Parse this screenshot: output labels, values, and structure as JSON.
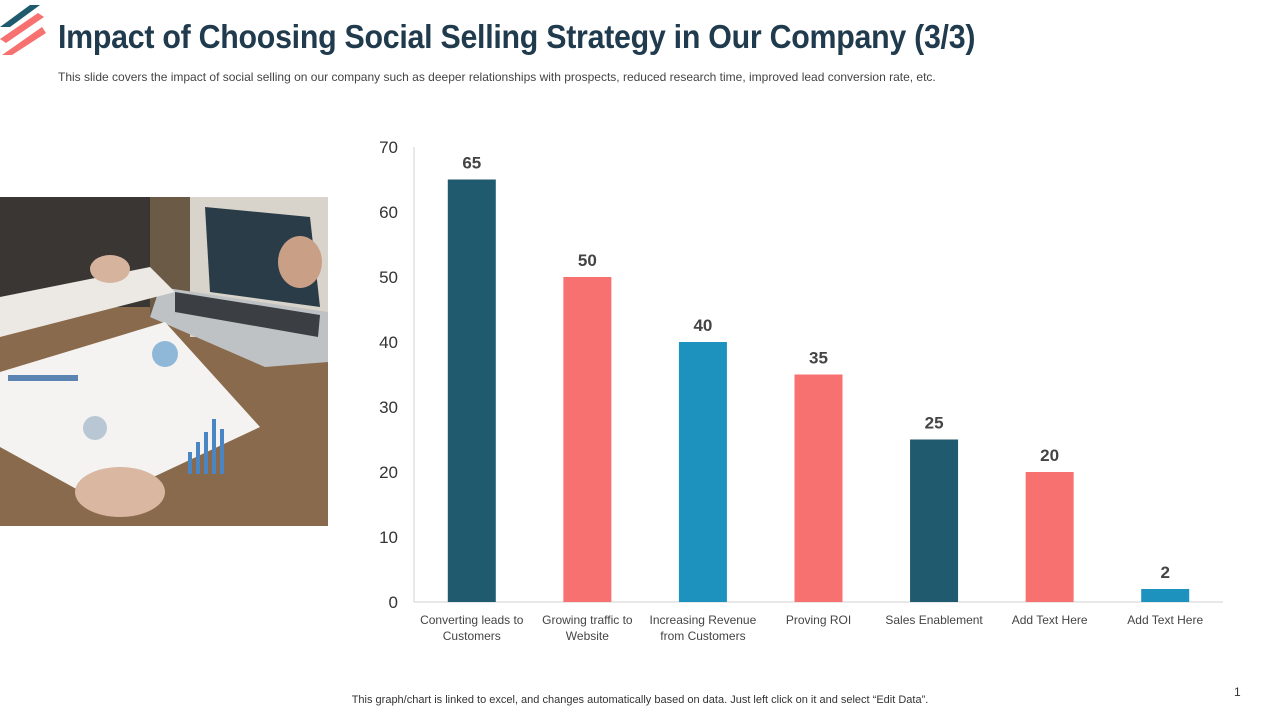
{
  "slide": {
    "title": "Impact of Choosing Social Selling Strategy in Our Company (3/3)",
    "subtitle": "This slide covers the impact of social selling on our company such as deeper relationships with prospects, reduced research time, improved  lead conversion rate, etc.",
    "footnote": "This graph/chart is linked to excel,  and changes automatically based on data. Just left click on it and select “Edit Data”.",
    "page_number": "1"
  },
  "colors": {
    "title": "#1f3b4d",
    "dark_teal": "#1f5a6e",
    "coral": "#f87171",
    "blue": "#1d92bf"
  },
  "chart_data": {
    "type": "bar",
    "categories": [
      [
        "Converting leads to",
        "Customers"
      ],
      [
        "Growing traffic to",
        "Website"
      ],
      [
        "Increasing Revenue",
        "from Customers"
      ],
      [
        "Proving ROI"
      ],
      [
        "Sales Enablement"
      ],
      [
        "Add Text Here"
      ],
      [
        "Add Text Here"
      ]
    ],
    "values": [
      65,
      50,
      40,
      35,
      25,
      20,
      2
    ],
    "bar_colors": [
      "#1f5a6e",
      "#f87171",
      "#1d92bf",
      "#f87171",
      "#1f5a6e",
      "#f87171",
      "#1d92bf"
    ],
    "yticks": [
      "0",
      "10",
      "20",
      "30",
      "40",
      "50",
      "60",
      "70"
    ],
    "ylim": [
      0,
      70
    ],
    "grid": false,
    "legend": "none"
  }
}
